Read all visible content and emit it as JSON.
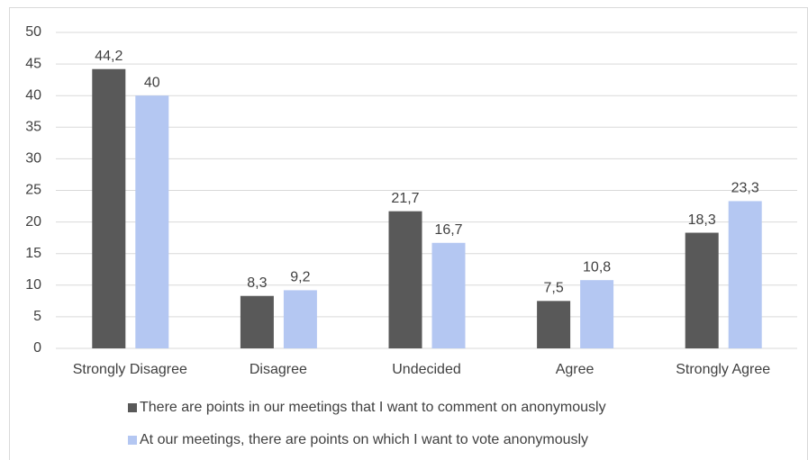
{
  "chart_data": {
    "type": "bar",
    "categories": [
      "Strongly Disagree",
      "Disagree",
      "Undecided",
      "Agree",
      "Strongly Agree"
    ],
    "series": [
      {
        "name": "There are points in our meetings that I want to comment on anonymously",
        "color": "#595959",
        "values": [
          44.2,
          8.3,
          21.7,
          7.5,
          18.3
        ],
        "value_labels": [
          "44,2",
          "8,3",
          "21,7",
          "7,5",
          "18,3"
        ]
      },
      {
        "name": "At our meetings, there are points on which I want to vote anonymously",
        "color": "#b4c7f2",
        "values": [
          40,
          9.2,
          16.7,
          10.8,
          23.3
        ],
        "value_labels": [
          "40",
          "9,2",
          "16,7",
          "10,8",
          "23,3"
        ]
      }
    ],
    "ylim": [
      0,
      50
    ],
    "yticks": [
      0,
      5,
      10,
      15,
      20,
      25,
      30,
      35,
      40,
      45,
      50
    ],
    "grid": true,
    "legend": "bottom"
  }
}
